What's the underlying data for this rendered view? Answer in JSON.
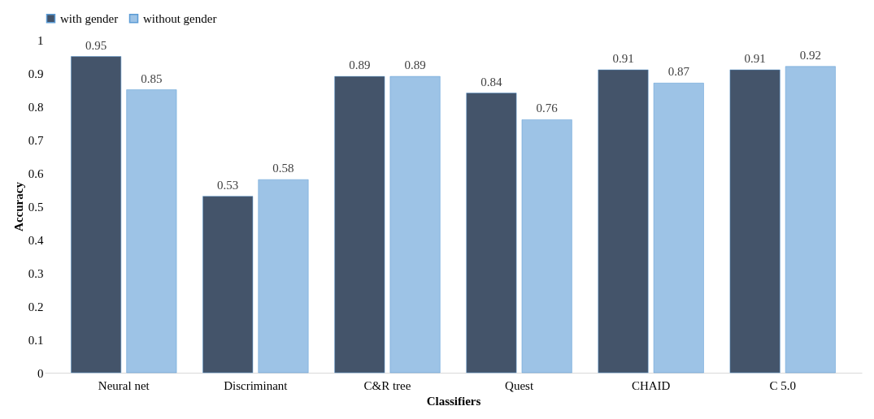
{
  "chart_data": {
    "type": "bar",
    "xlabel": "Classifiers",
    "ylabel": "Accuracy",
    "categories": [
      "Neural net",
      "Discriminant",
      "C&R tree",
      "Quest",
      "CHAID",
      "C 5.0"
    ],
    "series": [
      {
        "name": "with gender",
        "color": "#44546a",
        "values": [
          0.95,
          0.53,
          0.89,
          0.84,
          0.91,
          0.91
        ]
      },
      {
        "name": "without gender",
        "color": "#9dc3e6",
        "values": [
          0.85,
          0.58,
          0.89,
          0.76,
          0.87,
          0.92
        ]
      }
    ],
    "ylim": [
      0,
      1
    ],
    "yticks": [
      0,
      0.1,
      0.2,
      0.3,
      0.4,
      0.5,
      0.6,
      0.7,
      0.8,
      0.9,
      1
    ],
    "grid": false,
    "legend": "top",
    "data_labels": true
  }
}
